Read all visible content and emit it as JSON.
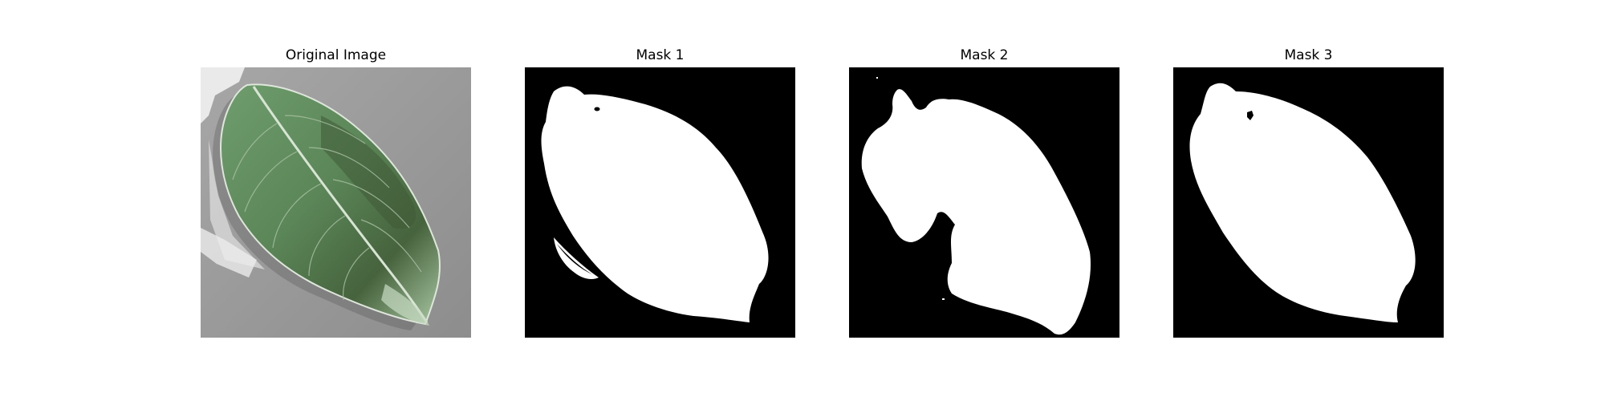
{
  "panels": [
    {
      "title": "Original Image",
      "kind": "photo"
    },
    {
      "title": "Mask 1",
      "kind": "mask"
    },
    {
      "title": "Mask 2",
      "kind": "mask"
    },
    {
      "title": "Mask 3",
      "kind": "mask"
    }
  ],
  "colors": {
    "background": "#ffffff",
    "mask_background": "#000000",
    "mask_foreground": "#ffffff",
    "photo_background": "#9a9a9a",
    "leaf_green": "#5f8a5e",
    "leaf_dark": "#3f5a37",
    "leaf_light": "#a9c5a5"
  }
}
